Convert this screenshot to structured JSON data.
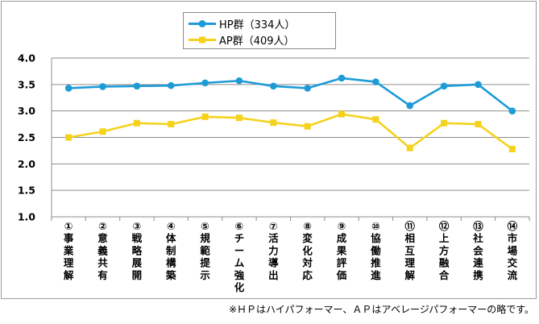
{
  "chart_data": {
    "type": "line",
    "categories": [
      "①事業理解",
      "②意義共有",
      "③戦略展開",
      "④体制構築",
      "⑤規範提示",
      "⑥チーム強化",
      "⑦活力導出",
      "⑧変化対応",
      "⑨成果評価",
      "⑩協働推進",
      "⑪相互理解",
      "⑫上方融合",
      "⑬社会連携",
      "⑭市場交流"
    ],
    "series": [
      {
        "name": "HP群（334人）",
        "color": "#1e9bd7",
        "marker": "circle",
        "values": [
          3.43,
          3.46,
          3.47,
          3.48,
          3.53,
          3.57,
          3.47,
          3.43,
          3.62,
          3.55,
          3.1,
          3.47,
          3.5,
          3.0
        ]
      },
      {
        "name": "AP群（409人）",
        "color": "#f5d21c",
        "marker": "square",
        "values": [
          2.5,
          2.61,
          2.77,
          2.75,
          2.89,
          2.87,
          2.78,
          2.71,
          2.94,
          2.84,
          2.3,
          2.77,
          2.75,
          2.28
        ]
      }
    ],
    "ylim": [
      1.0,
      4.0
    ],
    "yticks": [
      "1.0",
      "1.5",
      "2.0",
      "2.5",
      "3.0",
      "3.5",
      "4.0"
    ],
    "grid": true,
    "legend_position": "top-center"
  },
  "footnote": "※ＨＰはハイパフォーマー、ＡＰはアベレージパフォーマーの略です。"
}
